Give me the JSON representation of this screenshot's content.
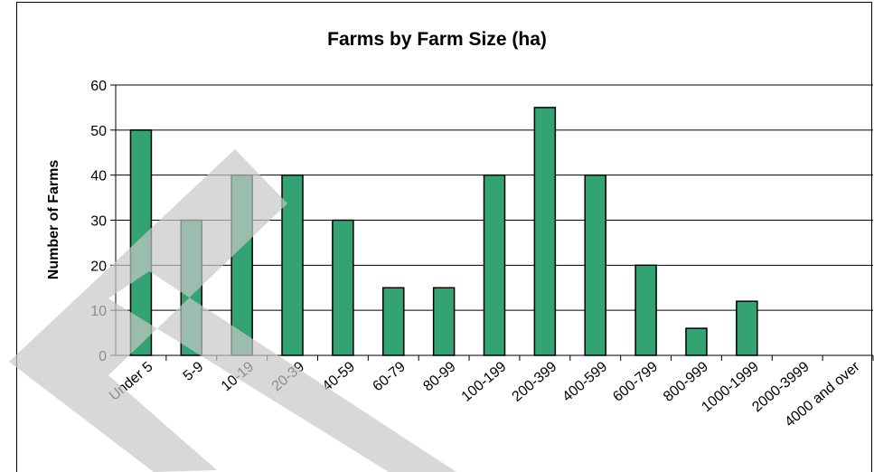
{
  "chart_data": {
    "type": "bar",
    "title": "Farms by Farm Size (ha)",
    "xlabel": "",
    "ylabel": "Number of Farms",
    "categories": [
      "Under 5",
      "5-9",
      "10-19",
      "20-39",
      "40-59",
      "60-79",
      "80-99",
      "100-199",
      "200-399",
      "400-599",
      "600-799",
      "800-999",
      "1000-1999",
      "2000-3999",
      "4000 and over"
    ],
    "values": [
      50,
      30,
      40,
      40,
      30,
      15,
      15,
      40,
      55,
      40,
      20,
      6,
      12,
      0,
      0
    ],
    "ylim": [
      0,
      60
    ],
    "yticks": [
      0,
      10,
      20,
      30,
      40,
      50,
      60
    ],
    "grid": true,
    "bar_color": "#33a374",
    "watermark_color": "#c8c8c8"
  }
}
